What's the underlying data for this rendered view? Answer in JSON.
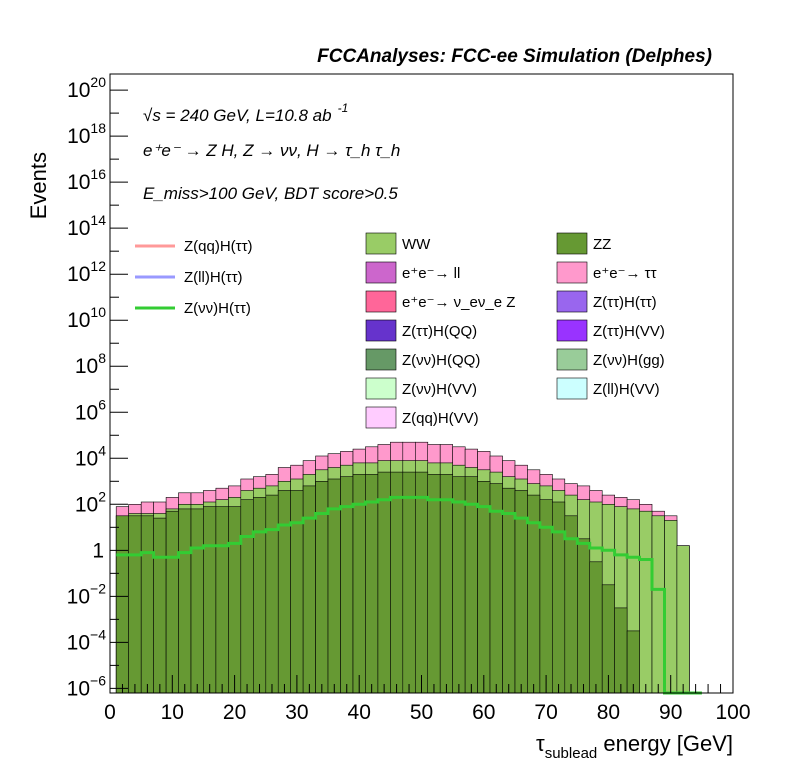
{
  "chart_data": {
    "type": "stacked histogram (log y)",
    "title": "FCCAnalyses: FCC-ee Simulation (Delphes)",
    "xlabel": "τ_sublead energy [GeV]",
    "xlabel_main": "τ",
    "xlabel_sub": "sublead",
    "xlabel_rest": " energy [GeV]",
    "ylabel": "Events",
    "xlim": [
      0,
      100
    ],
    "ylim_log10": [
      -6.2,
      20.7
    ],
    "log_y": true,
    "bin_width_gev": 2,
    "x_ticks": [
      "0",
      "10",
      "20",
      "30",
      "40",
      "50",
      "60",
      "70",
      "80",
      "90",
      "100"
    ],
    "y_ticks": [
      {
        "exp": -6,
        "label": "10",
        "sup": "−6"
      },
      {
        "exp": -4,
        "label": "10",
        "sup": "−4"
      },
      {
        "exp": -2,
        "label": "10",
        "sup": "−2"
      },
      {
        "exp": 0,
        "label": "1",
        "sup": ""
      },
      {
        "exp": 2,
        "label": "10",
        "sup": "2"
      },
      {
        "exp": 4,
        "label": "10",
        "sup": "4"
      },
      {
        "exp": 6,
        "label": "10",
        "sup": "6"
      },
      {
        "exp": 8,
        "label": "10",
        "sup": "8"
      },
      {
        "exp": 10,
        "label": "10",
        "sup": "10"
      },
      {
        "exp": 12,
        "label": "10",
        "sup": "12"
      },
      {
        "exp": 14,
        "label": "10",
        "sup": "14"
      },
      {
        "exp": 16,
        "label": "10",
        "sup": "16"
      },
      {
        "exp": 18,
        "label": "10",
        "sup": "18"
      },
      {
        "exp": 20,
        "label": "10",
        "sup": "20"
      }
    ],
    "annotations": {
      "line1": "√s = 240 GeV, L=10.8 ab",
      "line1_sup": "-1",
      "line2": "e⁺e⁻ → Z H, Z → νν, H → τ_h τ_h",
      "line3": "E_miss>100 GeV, BDT score>0.5"
    },
    "background_legend": [
      {
        "name": "WW",
        "color": "#99cc66"
      },
      {
        "name": "ZZ",
        "color": "#669933"
      },
      {
        "name": "e⁺e⁻→ ll",
        "color": "#cc66cc"
      },
      {
        "name": "e⁺e⁻→ ττ",
        "color": "#ff99cc"
      },
      {
        "name": "e⁺e⁻→ ν_eν_e Z",
        "color": "#ff6699"
      },
      {
        "name": "Z(ττ)H(ττ)",
        "color": "#9966ee"
      },
      {
        "name": "Z(ττ)H(QQ)",
        "color": "#6633cc"
      },
      {
        "name": "Z(ττ)H(VV)",
        "color": "#9933ff"
      },
      {
        "name": "Z(νν)H(QQ)",
        "color": "#669966"
      },
      {
        "name": "Z(νν)H(gg)",
        "color": "#99cc99"
      },
      {
        "name": "Z(νν)H(VV)",
        "color": "#ccffcc"
      },
      {
        "name": "Z(ll)H(VV)",
        "color": "#ccffff"
      },
      {
        "name": "Z(qq)H(VV)",
        "color": "#ffccff"
      }
    ],
    "signal_legend": [
      {
        "name": "Z(qq)H(ττ)",
        "color": "#ff9999"
      },
      {
        "name": "Z(ll)H(ττ)",
        "color": "#9999ff"
      },
      {
        "name": "Z(νν)H(ττ)",
        "color": "#33cc33"
      }
    ],
    "x_bins": [
      2,
      4,
      6,
      8,
      10,
      12,
      14,
      16,
      18,
      20,
      22,
      24,
      26,
      28,
      30,
      32,
      34,
      36,
      38,
      40,
      42,
      44,
      46,
      48,
      50,
      52,
      54,
      56,
      58,
      60,
      62,
      64,
      66,
      68,
      70,
      72,
      74,
      76,
      78,
      80,
      82,
      84,
      86,
      88,
      90,
      92,
      94
    ],
    "series": [
      {
        "name": "ZZ",
        "color": "#669933",
        "log10_values": [
          1.5,
          1.5,
          1.5,
          1.4,
          1.7,
          1.8,
          1.8,
          1.9,
          1.9,
          1.9,
          2.2,
          2.3,
          2.4,
          2.6,
          2.6,
          2.8,
          3.0,
          3.1,
          3.2,
          3.3,
          3.3,
          3.4,
          3.4,
          3.4,
          3.4,
          3.3,
          3.3,
          3.2,
          3.2,
          3.0,
          2.9,
          2.7,
          2.6,
          2.4,
          2.2,
          2.1,
          1.5,
          0.5,
          -0.5,
          -1.5,
          -2.5,
          -3.5,
          -6.5,
          -6.5,
          -6.5,
          -6.5,
          -6.5
        ]
      },
      {
        "name": "WW",
        "color": "#99cc66",
        "log10_values": [
          1.5,
          1.6,
          1.6,
          1.6,
          1.8,
          2.0,
          2.0,
          2.1,
          2.2,
          2.3,
          2.6,
          2.7,
          2.8,
          3.0,
          3.1,
          3.3,
          3.5,
          3.6,
          3.7,
          3.8,
          3.8,
          3.9,
          3.9,
          3.9,
          3.9,
          3.8,
          3.8,
          3.7,
          3.6,
          3.5,
          3.4,
          3.2,
          3.1,
          2.9,
          2.8,
          2.6,
          2.4,
          2.2,
          2.1,
          2.0,
          1.9,
          1.8,
          1.7,
          1.5,
          1.3,
          0.2,
          -6.5
        ]
      },
      {
        "name": "e⁺e⁻→ ττ",
        "color": "#ff99cc",
        "log10_values": [
          1.9,
          2.0,
          2.1,
          2.1,
          2.3,
          2.5,
          2.5,
          2.6,
          2.7,
          2.8,
          3.1,
          3.2,
          3.3,
          3.6,
          3.7,
          3.9,
          4.1,
          4.2,
          4.3,
          4.4,
          4.5,
          4.6,
          4.7,
          4.7,
          4.7,
          4.6,
          4.6,
          4.5,
          4.4,
          4.3,
          4.1,
          3.9,
          3.7,
          3.5,
          3.3,
          3.1,
          2.9,
          2.8,
          2.6,
          2.4,
          2.3,
          2.2,
          2.0,
          1.7,
          1.5,
          0.2,
          -6.5
        ]
      },
      {
        "name": "Z(νν)H(ττ)",
        "color": "#33cc33",
        "log10_values": [
          -0.2,
          -0.2,
          -0.1,
          -0.3,
          -0.3,
          -0.1,
          0.1,
          0.2,
          0.2,
          0.3,
          0.6,
          0.8,
          0.9,
          1.1,
          1.2,
          1.4,
          1.6,
          1.8,
          1.9,
          2.0,
          2.1,
          2.2,
          2.3,
          2.3,
          2.3,
          2.2,
          2.2,
          2.1,
          2.0,
          1.9,
          1.7,
          1.6,
          1.4,
          1.2,
          1.0,
          0.8,
          0.5,
          0.3,
          0.1,
          0.0,
          -0.2,
          -0.3,
          -0.4,
          -1.7,
          -6.5,
          -6.5,
          -6.5
        ]
      }
    ]
  }
}
